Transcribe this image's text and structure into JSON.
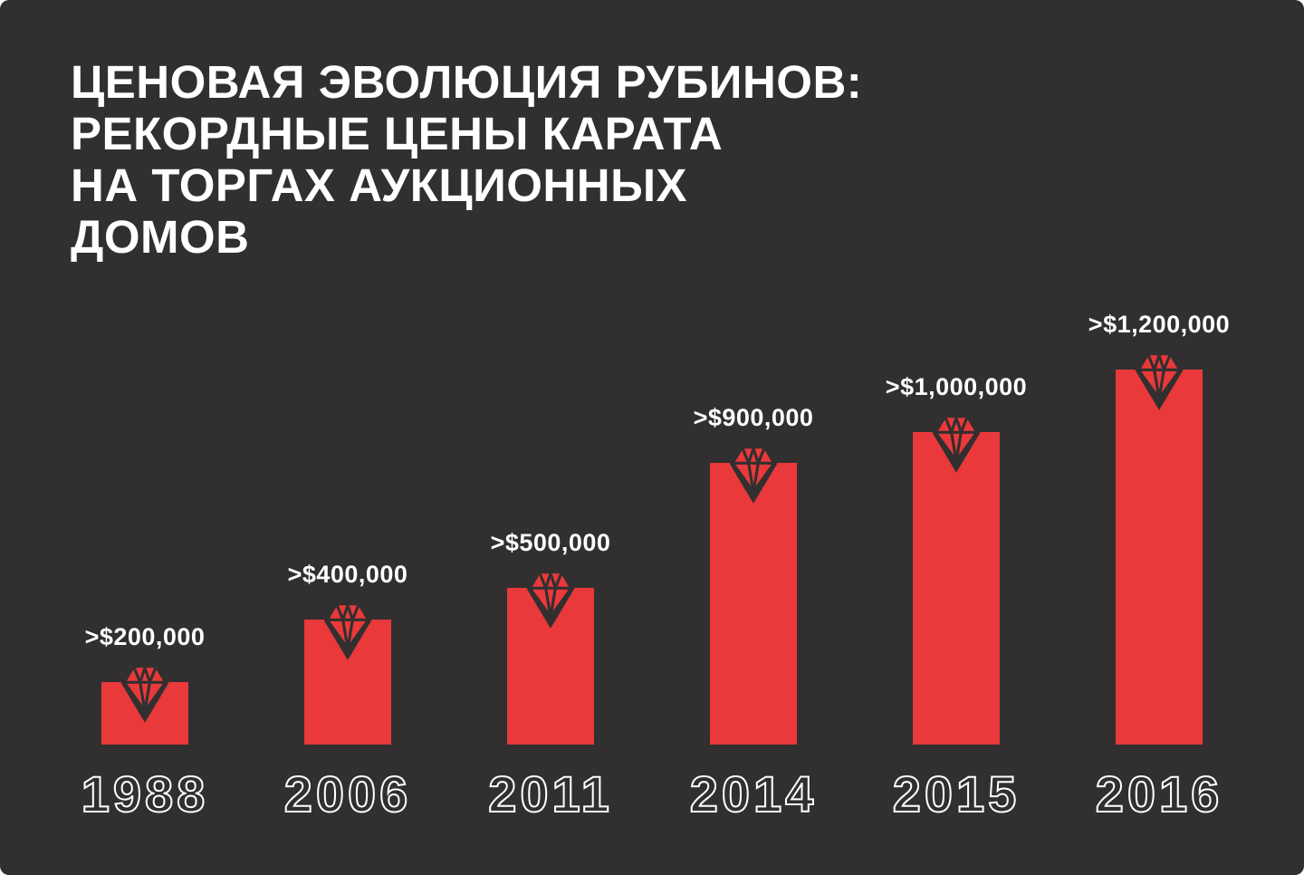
{
  "colors": {
    "background": "#312f2f",
    "bar_red": "#e9393b",
    "text": "#ffffff"
  },
  "title": {
    "lines": [
      "ЦЕНОВАЯ ЭВОЛЮЦИЯ РУБИНОВ:",
      "РЕКОРДНЫЕ ЦЕНЫ КАРАТА",
      "НА ТОРГАХ АУКЦИОННЫХ",
      "ДОМОВ"
    ]
  },
  "chart_data": {
    "type": "bar",
    "title": "ЦЕНОВАЯ ЭВОЛЮЦИЯ РУБИНОВ: РЕКОРДНЫЕ ЦЕНЫ КАРАТА НА ТОРГАХ АУКЦИОННЫХ ДОМОВ",
    "categories": [
      "1988",
      "2006",
      "2011",
      "2014",
      "2015",
      "2016"
    ],
    "values": [
      200000,
      400000,
      500000,
      900000,
      1000000,
      1200000
    ],
    "value_labels": [
      ">$200,000",
      ">$400,000",
      ">$500,000",
      ">$900,000",
      ">$1,000,000",
      ">$1,200,000"
    ],
    "xlabel": "",
    "ylabel": "",
    "ylim": [
      0,
      1300000
    ],
    "grid": false,
    "legend": false,
    "bar_color": "#e9393b",
    "marker_icon": "ruby-gem-icon"
  }
}
